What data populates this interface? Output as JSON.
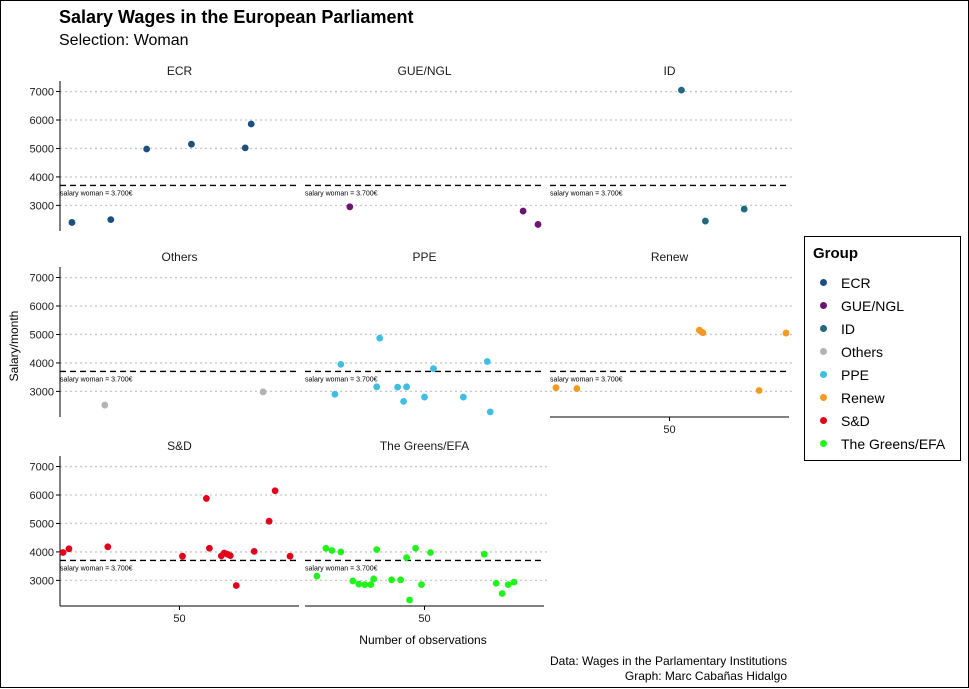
{
  "header": {
    "title": "Salary Wages in the European Parliament",
    "subtitle": "Selection: Woman"
  },
  "caption": {
    "line1": "Data: Wages in the Parlamentary Institutions",
    "line2": "Graph: Marc Cabañas Hidalgo"
  },
  "legend": {
    "title": "Group",
    "items": [
      {
        "label": "ECR",
        "color": "#1b4f80"
      },
      {
        "label": "GUE/NGL",
        "color": "#6b1470"
      },
      {
        "label": "ID",
        "color": "#1f6a7e"
      },
      {
        "label": "Others",
        "color": "#b3b3b3"
      },
      {
        "label": "PPE",
        "color": "#3cbfe0"
      },
      {
        "label": "Renew",
        "color": "#f39a23"
      },
      {
        "label": "S&D",
        "color": "#e3001b"
      },
      {
        "label": "The Greens/EFA",
        "color": "#1ff51a"
      }
    ]
  },
  "chart_data": {
    "type": "scatter",
    "facet_by": "Group",
    "xlabel": "Number of observations",
    "ylabel": "Salary/month",
    "ylim": [
      2100,
      7300
    ],
    "yticks": [
      3000,
      4000,
      5000,
      6000,
      7000
    ],
    "xticks": [
      50
    ],
    "xlim": [
      30,
      70
    ],
    "grid": "horizontal dotted",
    "reference_line": {
      "value": 3700,
      "label": "salary woman = 3.700€",
      "style": "dashed"
    },
    "panels": [
      {
        "name": "ECR",
        "color": "#1b4f80",
        "x": [
          32,
          38.5,
          44.5,
          52,
          61,
          62
        ],
        "y": [
          2400,
          2500,
          4980,
          5150,
          5020,
          5860
        ]
      },
      {
        "name": "GUE/NGL",
        "color": "#6b1470",
        "x": [
          37.5,
          66.5,
          69
        ],
        "y": [
          2950,
          2800,
          2330
        ]
      },
      {
        "name": "ID",
        "color": "#1f6a7e",
        "x": [
          52,
          56,
          62.5
        ],
        "y": [
          7050,
          2450,
          2870
        ]
      },
      {
        "name": "Others",
        "color": "#b3b3b3",
        "x": [
          37.5,
          64
        ],
        "y": [
          2520,
          2980
        ]
      },
      {
        "name": "PPE",
        "color": "#3cbfe0",
        "x": [
          35,
          36,
          42,
          42.5,
          45.5,
          46.5,
          47,
          50,
          51.5,
          56.5,
          60.5,
          61
        ],
        "y": [
          2900,
          3950,
          3160,
          4870,
          3150,
          2650,
          3160,
          2800,
          3800,
          2800,
          4050,
          2280
        ]
      },
      {
        "name": "Renew",
        "color": "#f39a23",
        "x": [
          31,
          34.5,
          55,
          55.3,
          55.6,
          65,
          69.5
        ],
        "y": [
          3130,
          3100,
          5150,
          5100,
          5060,
          3030,
          5050
        ]
      },
      {
        "name": "S&D",
        "color": "#e3001b",
        "x": [
          30.5,
          31.5,
          38,
          50.5,
          54.5,
          55,
          57,
          57.5,
          58,
          58.5,
          59.5,
          62.5,
          65,
          66,
          68.5
        ],
        "y": [
          3980,
          4110,
          4180,
          3850,
          5880,
          4130,
          3860,
          3960,
          3920,
          3870,
          2820,
          4020,
          5080,
          6150,
          3850
        ]
      },
      {
        "name": "The Greens/EFA",
        "color": "#1ff51a",
        "x": [
          32,
          33.5,
          34.5,
          36,
          38,
          39,
          40,
          41,
          41.5,
          42,
          44.5,
          46,
          47,
          47.5,
          48.5,
          49.5,
          51,
          60,
          62,
          63,
          64,
          65
        ],
        "y": [
          3150,
          4130,
          4050,
          4000,
          2980,
          2870,
          2850,
          2850,
          3050,
          4080,
          3020,
          3020,
          3800,
          2310,
          4130,
          2850,
          3980,
          3920,
          2900,
          2540,
          2850,
          2940
        ]
      }
    ]
  }
}
